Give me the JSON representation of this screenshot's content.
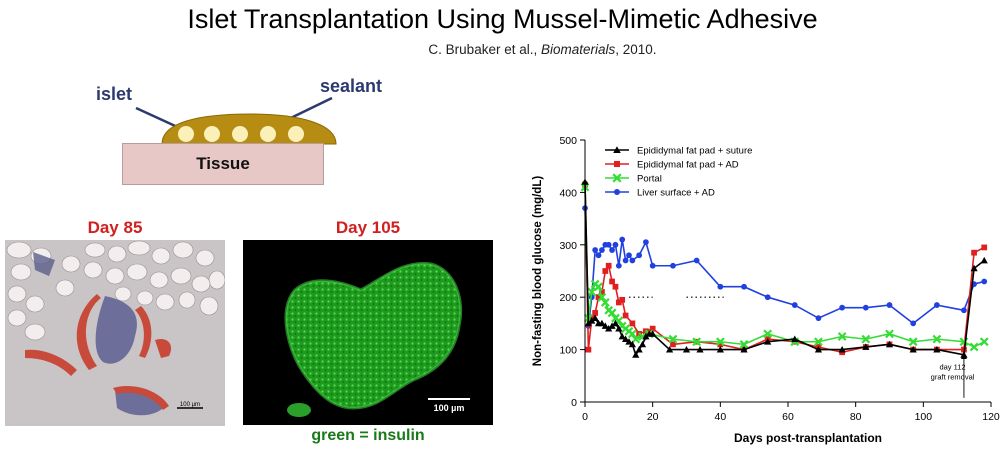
{
  "slide": {
    "title": "Islet Transplantation Using Mussel-Mimetic Adhesive",
    "citation_authors": "C. Brubaker et al., ",
    "citation_journal": "Biomaterials",
    "citation_year": ", 2010."
  },
  "diagram": {
    "islet_label": "islet",
    "sealant_label": "sealant",
    "tissue_label": "Tissue"
  },
  "micrographs": {
    "left_day": "Day 85",
    "right_day": "Day 105",
    "left_scalebar": "100 µm",
    "right_scalebar": "100 µm",
    "caption": "green = insulin"
  },
  "chart_data": {
    "type": "line",
    "xlabel": "Days post-transplantation",
    "ylabel": "Non-fasting blood glucose (mg/dL)",
    "xlim": [
      0,
      120
    ],
    "ylim": [
      0,
      500
    ],
    "xticks": [
      0,
      20,
      40,
      60,
      80,
      100,
      120
    ],
    "yticks": [
      0,
      100,
      200,
      300,
      400,
      500
    ],
    "legend_position": "top-left",
    "annotation": [
      "day 112",
      "graft removal"
    ],
    "series": [
      {
        "name": "Epididymal fat pad + suture",
        "color": "#000000",
        "marker": "triangle",
        "x": [
          0,
          1,
          2,
          3,
          4,
          5,
          6,
          7,
          8,
          9,
          10,
          11,
          12,
          13,
          14,
          15,
          16,
          17,
          18,
          19,
          20,
          25,
          30,
          34,
          40,
          47,
          54,
          62,
          69,
          76,
          83,
          90,
          97,
          104,
          112,
          115,
          118
        ],
        "y": [
          420,
          150,
          155,
          160,
          150,
          150,
          145,
          140,
          145,
          150,
          140,
          125,
          120,
          115,
          110,
          90,
          100,
          110,
          125,
          130,
          130,
          100,
          100,
          100,
          100,
          100,
          115,
          120,
          100,
          100,
          105,
          110,
          100,
          100,
          90,
          255,
          270
        ]
      },
      {
        "name": "Epididymal fat pad + AD",
        "color": "#e02020",
        "marker": "square",
        "x": [
          0,
          1,
          2,
          3,
          4,
          5,
          6,
          7,
          8,
          9,
          10,
          11,
          12,
          14,
          16,
          18,
          20,
          26,
          33,
          40,
          47,
          54,
          62,
          69,
          76,
          83,
          90,
          97,
          104,
          112,
          115,
          118
        ],
        "y": [
          415,
          100,
          160,
          170,
          200,
          210,
          250,
          260,
          230,
          220,
          190,
          195,
          165,
          150,
          130,
          135,
          140,
          110,
          115,
          110,
          100,
          120,
          115,
          105,
          95,
          105,
          110,
          100,
          100,
          100,
          285,
          295
        ]
      },
      {
        "name": "Portal",
        "color": "#33dd33",
        "marker": "x",
        "x": [
          0,
          1,
          2,
          3,
          4,
          5,
          6,
          7,
          8,
          9,
          10,
          11,
          12,
          13,
          14,
          15,
          17,
          19,
          26,
          33,
          40,
          47,
          54,
          62,
          69,
          76,
          83,
          90,
          97,
          104,
          112,
          115,
          118
        ],
        "y": [
          410,
          160,
          210,
          225,
          220,
          200,
          190,
          175,
          170,
          160,
          155,
          145,
          140,
          135,
          130,
          120,
          125,
          130,
          120,
          115,
          115,
          110,
          130,
          115,
          115,
          125,
          120,
          130,
          115,
          120,
          115,
          105,
          115
        ]
      },
      {
        "name": "Liver surface + AD",
        "color": "#2040e0",
        "marker": "circle",
        "x": [
          0,
          1,
          2,
          3,
          4,
          5,
          6,
          7,
          8,
          9,
          10,
          11,
          12,
          13,
          14,
          16,
          18,
          20,
          26,
          33,
          40,
          47,
          54,
          62,
          69,
          76,
          83,
          90,
          97,
          104,
          112,
          115,
          118
        ],
        "y": [
          370,
          145,
          200,
          290,
          280,
          290,
          300,
          300,
          290,
          300,
          260,
          310,
          270,
          280,
          270,
          280,
          305,
          260,
          260,
          270,
          220,
          220,
          200,
          185,
          160,
          180,
          180,
          185,
          150,
          185,
          175,
          225,
          230
        ]
      }
    ]
  }
}
